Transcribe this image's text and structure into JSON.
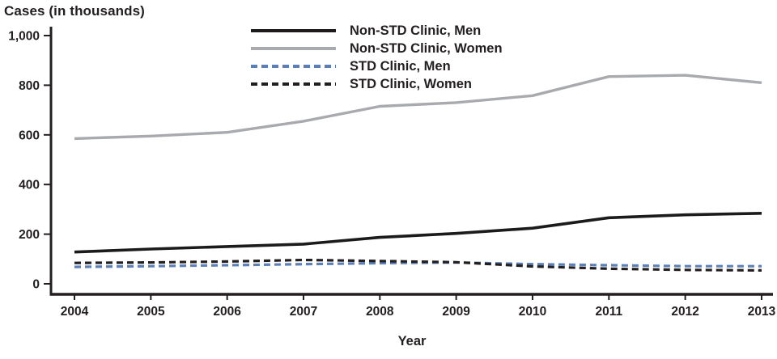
{
  "title": "Cases (in thousands)",
  "xlabel": "Year",
  "chart_data": {
    "type": "line",
    "title": "Cases (in thousands)",
    "xlabel": "Year",
    "ylabel": "Cases (in thousands)",
    "categories": [
      "2004",
      "2005",
      "2006",
      "2007",
      "2008",
      "2009",
      "2010",
      "2011",
      "2012",
      "2013"
    ],
    "ylim": [
      0,
      1000
    ],
    "yticks": [
      0,
      200,
      400,
      600,
      800,
      1000
    ],
    "ytick_labels": [
      "0",
      "200",
      "400",
      "600",
      "800",
      "1,000"
    ],
    "grid": false,
    "legend_position": "top-center-inside",
    "axis_color": "#231f20",
    "series": [
      {
        "name": "Non-STD Clinic, Men",
        "style": "solid",
        "color": "#1c1a1b",
        "stroke_width": 3.6,
        "values": [
          128,
          140,
          150,
          160,
          187,
          203,
          224,
          266,
          278,
          284
        ]
      },
      {
        "name": "Non-STD Clinic, Women",
        "style": "solid",
        "color": "#a8aaad",
        "stroke_width": 3.4,
        "values": [
          585,
          595,
          610,
          655,
          715,
          730,
          758,
          835,
          840,
          810
        ]
      },
      {
        "name": "STD Clinic, Men",
        "style": "dashed",
        "color": "#5b7fb8",
        "stroke_width": 3.2,
        "values": [
          68,
          71,
          75,
          79,
          83,
          86,
          79,
          75,
          71,
          71
        ]
      },
      {
        "name": "STD Clinic, Women",
        "style": "dashed",
        "color": "#231f20",
        "stroke_width": 3.2,
        "values": [
          84,
          86,
          90,
          96,
          92,
          87,
          70,
          61,
          56,
          54
        ]
      }
    ]
  }
}
